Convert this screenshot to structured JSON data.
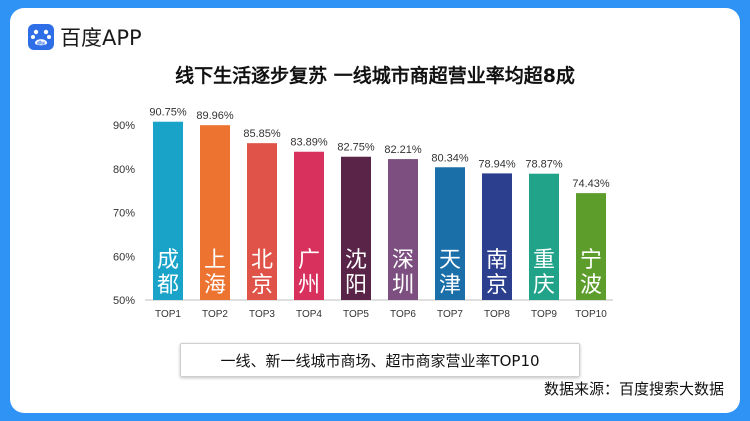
{
  "brand": {
    "name": "百度APP"
  },
  "headline": "线下生活逐步复苏 一线城市商超营业率均超8成",
  "caption": "一线、新一线城市商场、超市商家营业率TOP10",
  "source": "数据来源：百度搜索大数据",
  "colors": {
    "background": "#2f93f6",
    "bars": [
      "#1aa3c9",
      "#ec7330",
      "#e05348",
      "#d8315d",
      "#5a2448",
      "#7d4f80",
      "#1b6fa8",
      "#2c3f8f",
      "#21a38a",
      "#5c9d2c"
    ]
  },
  "chart_data": {
    "type": "bar",
    "categories": [
      "TOP1",
      "TOP2",
      "TOP3",
      "TOP4",
      "TOP5",
      "TOP6",
      "TOP7",
      "TOP8",
      "TOP9",
      "TOP10"
    ],
    "cities": [
      "成都",
      "上海",
      "北京",
      "广州",
      "沈阳",
      "深圳",
      "天津",
      "南京",
      "重庆",
      "宁波"
    ],
    "values": [
      90.75,
      89.96,
      85.85,
      83.89,
      82.75,
      82.21,
      80.34,
      78.94,
      78.87,
      74.43
    ],
    "value_labels": [
      "90.75%",
      "89.96%",
      "85.85%",
      "83.89%",
      "82.75%",
      "82.21%",
      "80.34%",
      "78.94%",
      "78.87%",
      "74.43%"
    ],
    "ylim": [
      50,
      90
    ],
    "yticks": [
      50,
      60,
      70,
      80,
      90
    ],
    "ytick_labels": [
      "50%",
      "60%",
      "70%",
      "80%",
      "90%"
    ],
    "grid": false
  }
}
